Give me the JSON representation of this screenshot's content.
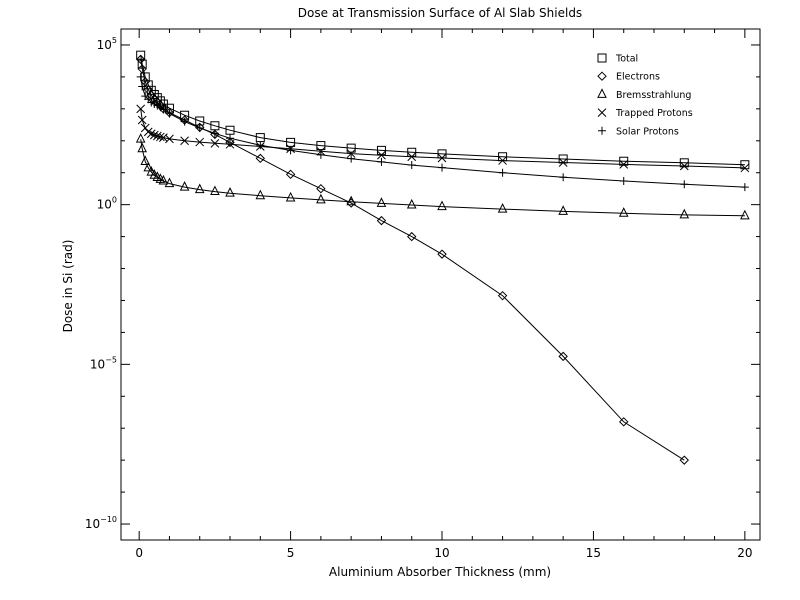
{
  "chart_data": {
    "type": "line",
    "title": "Dose at Transmission Surface of Al Slab Shields",
    "xlabel": "Aluminium Absorber Thickness (mm)",
    "ylabel": "Dose in Si (rad)",
    "xlim": [
      -0.6,
      20.5
    ],
    "ylim_log10": [
      -10.5,
      5.5
    ],
    "y_scale": "log",
    "xticks": [
      {
        "value": 0,
        "label": "0"
      },
      {
        "value": 5,
        "label": "5"
      },
      {
        "value": 10,
        "label": "10"
      },
      {
        "value": 15,
        "label": "15"
      },
      {
        "value": 20,
        "label": "20"
      }
    ],
    "yticks": [
      {
        "exp": 5,
        "base": "10",
        "sup": "5"
      },
      {
        "exp": 0,
        "base": "10",
        "sup": "0"
      },
      {
        "exp": -5,
        "base": "10",
        "sup": "−5"
      },
      {
        "exp": -10,
        "base": "10",
        "sup": "−10"
      }
    ],
    "grid": false,
    "legend_position": "top-right",
    "series": [
      {
        "name": "Total",
        "marker": "square",
        "x": [
          0.05,
          0.1,
          0.2,
          0.3,
          0.4,
          0.5,
          0.6,
          0.7,
          0.8,
          1.0,
          1.5,
          2.0,
          2.5,
          3.0,
          4.0,
          5.0,
          6.0,
          7.0,
          8.0,
          9.0,
          10.0,
          12.0,
          14.0,
          16.0,
          18.0,
          20.0
        ],
        "log10_y": [
          4.68,
          4.4,
          4.0,
          3.75,
          3.58,
          3.45,
          3.35,
          3.25,
          3.15,
          3.02,
          2.8,
          2.62,
          2.47,
          2.33,
          2.1,
          1.95,
          1.85,
          1.77,
          1.7,
          1.64,
          1.59,
          1.5,
          1.43,
          1.36,
          1.31,
          1.25
        ]
      },
      {
        "name": "Electrons",
        "marker": "diamond",
        "x": [
          0.05,
          0.1,
          0.2,
          0.3,
          0.4,
          0.5,
          0.6,
          0.7,
          0.8,
          1.0,
          1.5,
          2.0,
          2.5,
          3.0,
          4.0,
          5.0,
          6.0,
          7.0,
          8.0,
          9.0,
          10.0,
          12.0,
          14.0,
          16.0,
          18.0
        ],
        "log10_y": [
          4.55,
          4.25,
          3.85,
          3.6,
          3.42,
          3.3,
          3.2,
          3.1,
          3.0,
          2.88,
          2.65,
          2.42,
          2.2,
          1.95,
          1.45,
          0.95,
          0.5,
          0.05,
          -0.5,
          -1.0,
          -1.55,
          -2.85,
          -4.75,
          -6.8,
          -8.0
        ]
      },
      {
        "name": "Bremsstrahlung",
        "marker": "triangle",
        "x": [
          0.05,
          0.1,
          0.2,
          0.3,
          0.4,
          0.5,
          0.6,
          0.7,
          0.8,
          1.0,
          1.5,
          2.0,
          2.5,
          3.0,
          4.0,
          5.0,
          6.0,
          7.0,
          8.0,
          9.0,
          10.0,
          12.0,
          14.0,
          16.0,
          18.0,
          20.0
        ],
        "log10_y": [
          2.05,
          1.75,
          1.35,
          1.15,
          1.02,
          0.92,
          0.85,
          0.79,
          0.74,
          0.66,
          0.55,
          0.47,
          0.41,
          0.36,
          0.28,
          0.21,
          0.15,
          0.09,
          0.04,
          -0.01,
          -0.06,
          -0.14,
          -0.21,
          -0.27,
          -0.32,
          -0.35
        ]
      },
      {
        "name": "Trapped Protons",
        "marker": "x",
        "x": [
          0.05,
          0.1,
          0.2,
          0.3,
          0.4,
          0.5,
          0.6,
          0.7,
          0.8,
          1.0,
          1.5,
          2.0,
          2.5,
          3.0,
          4.0,
          5.0,
          6.0,
          7.0,
          8.0,
          9.0,
          10.0,
          12.0,
          14.0,
          16.0,
          18.0,
          20.0
        ],
        "log10_y": [
          3.0,
          2.65,
          2.4,
          2.28,
          2.22,
          2.18,
          2.15,
          2.12,
          2.1,
          2.06,
          2.0,
          1.96,
          1.92,
          1.89,
          1.82,
          1.75,
          1.67,
          1.6,
          1.55,
          1.5,
          1.46,
          1.38,
          1.32,
          1.26,
          1.21,
          1.15
        ]
      },
      {
        "name": "Solar Protons",
        "marker": "plus",
        "x": [
          0.05,
          0.1,
          0.2,
          0.3,
          0.4,
          0.5,
          0.6,
          0.7,
          0.8,
          1.0,
          1.5,
          2.0,
          2.5,
          3.0,
          4.0,
          5.0,
          6.0,
          7.0,
          8.0,
          9.0,
          10.0,
          12.0,
          14.0,
          16.0,
          18.0,
          20.0
        ],
        "log10_y": [
          4.0,
          3.7,
          3.4,
          3.3,
          3.2,
          3.15,
          3.1,
          3.05,
          2.98,
          2.85,
          2.6,
          2.4,
          2.23,
          2.08,
          1.86,
          1.7,
          1.56,
          1.44,
          1.34,
          1.24,
          1.16,
          1.0,
          0.86,
          0.74,
          0.64,
          0.55
        ]
      }
    ]
  }
}
